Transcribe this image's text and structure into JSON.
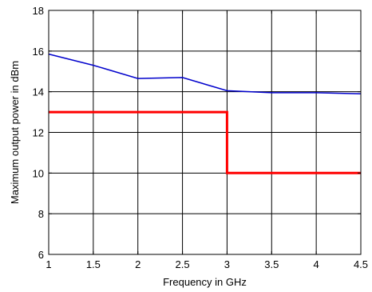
{
  "chart_data": {
    "type": "line",
    "title": "",
    "xlabel": "Frequency in GHz",
    "ylabel": "Maximum output power in dBm",
    "xlim": [
      1,
      4.5
    ],
    "ylim": [
      6,
      18
    ],
    "xticks": [
      1,
      1.5,
      2,
      2.5,
      3,
      3.5,
      4,
      4.5
    ],
    "yticks": [
      6,
      8,
      10,
      12,
      14,
      16,
      18
    ],
    "xtick_labels": [
      "1",
      "1.5",
      "2",
      "2.5",
      "3",
      "3.5",
      "4",
      "4.5"
    ],
    "ytick_labels": [
      "6",
      "8",
      "10",
      "12",
      "14",
      "16",
      "18"
    ],
    "grid": true,
    "legend": "none",
    "series": [
      {
        "color": "#0000cc",
        "x": [
          1,
          1.5,
          2,
          2.5,
          3,
          3.5,
          4,
          4.5
        ],
        "y": [
          15.85,
          15.3,
          14.65,
          14.7,
          14.05,
          13.95,
          13.95,
          13.9
        ]
      },
      {
        "color": "#ff0000",
        "x": [
          1,
          3,
          3,
          4.5
        ],
        "y": [
          13,
          13,
          10,
          10
        ]
      }
    ]
  }
}
